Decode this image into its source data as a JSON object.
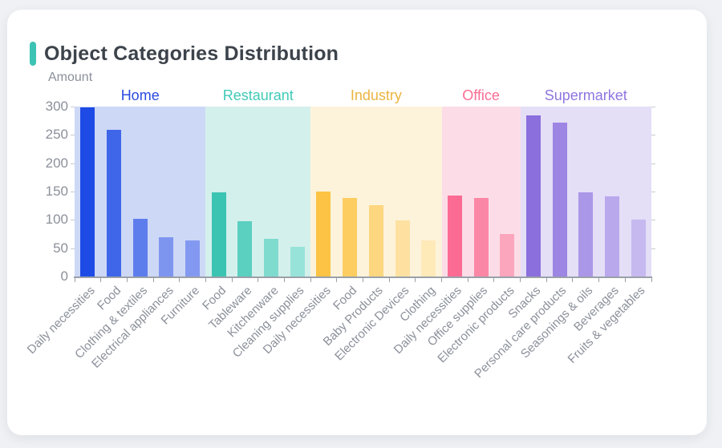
{
  "page": {
    "title": "Object Categories Distribution",
    "y_axis_name": "Amount"
  },
  "chart_data": {
    "type": "bar",
    "title": "Object Categories Distribution",
    "xlabel": "",
    "ylabel": "Amount",
    "ylim": [
      0,
      300
    ],
    "y_ticks": [
      0,
      50,
      100,
      150,
      200,
      250,
      300
    ],
    "grid": false,
    "legend_position": "group-headers-top",
    "groups": [
      {
        "name": "Home",
        "label_color": "#2b4be1",
        "panel_color": "#cdd8f6",
        "bars": [
          {
            "category": "Daily necessities",
            "value": 298,
            "color": "#1e4be6"
          },
          {
            "category": "Food",
            "value": 259,
            "color": "#3f66e9"
          },
          {
            "category": "Clothing & textiles",
            "value": 102,
            "color": "#5e7ded"
          },
          {
            "category": "Electrical appliances",
            "value": 70,
            "color": "#7e95f0"
          },
          {
            "category": "Furniture",
            "value": 64,
            "color": "#8399f1"
          }
        ]
      },
      {
        "name": "Restaurant",
        "label_color": "#41cab8",
        "panel_color": "#d4f0ec",
        "bars": [
          {
            "category": "Food",
            "value": 149,
            "color": "#3cc4b2"
          },
          {
            "category": "Tableware",
            "value": 98,
            "color": "#5bcfc0"
          },
          {
            "category": "Kitchenware",
            "value": 66,
            "color": "#80dbcf"
          },
          {
            "category": "Cleaning supplies",
            "value": 52,
            "color": "#98e3d9"
          }
        ]
      },
      {
        "name": "Industry",
        "label_color": "#ecb440",
        "panel_color": "#fdf3da",
        "bars": [
          {
            "category": "Daily necessities",
            "value": 150,
            "color": "#fcc344"
          },
          {
            "category": "Food",
            "value": 139,
            "color": "#fdcd62"
          },
          {
            "category": "Baby Products",
            "value": 126,
            "color": "#fdd680"
          },
          {
            "category": "Electronic Devices",
            "value": 99,
            "color": "#fee1a1"
          },
          {
            "category": "Clothing",
            "value": 64,
            "color": "#fee9b9"
          }
        ]
      },
      {
        "name": "Office",
        "label_color": "#fa6e95",
        "panel_color": "#fcdde7",
        "bars": [
          {
            "category": "Daily necessities",
            "value": 143,
            "color": "#fb6b93"
          },
          {
            "category": "Office supplies",
            "value": 138,
            "color": "#fb87a6"
          },
          {
            "category": "Electronic products",
            "value": 75,
            "color": "#fba6bd"
          }
        ]
      },
      {
        "name": "Supermarket",
        "label_color": "#8f75e0",
        "panel_color": "#e4def7",
        "bars": [
          {
            "category": "Snacks",
            "value": 285,
            "color": "#8a6fdd"
          },
          {
            "category": "Personal care products",
            "value": 272,
            "color": "#9c85e3"
          },
          {
            "category": "Seasonings & oils",
            "value": 149,
            "color": "#ab97e8"
          },
          {
            "category": "Beverages",
            "value": 141,
            "color": "#b9a8ec"
          },
          {
            "category": "Fruits & vegetables",
            "value": 101,
            "color": "#c6b9f0"
          }
        ]
      }
    ]
  }
}
